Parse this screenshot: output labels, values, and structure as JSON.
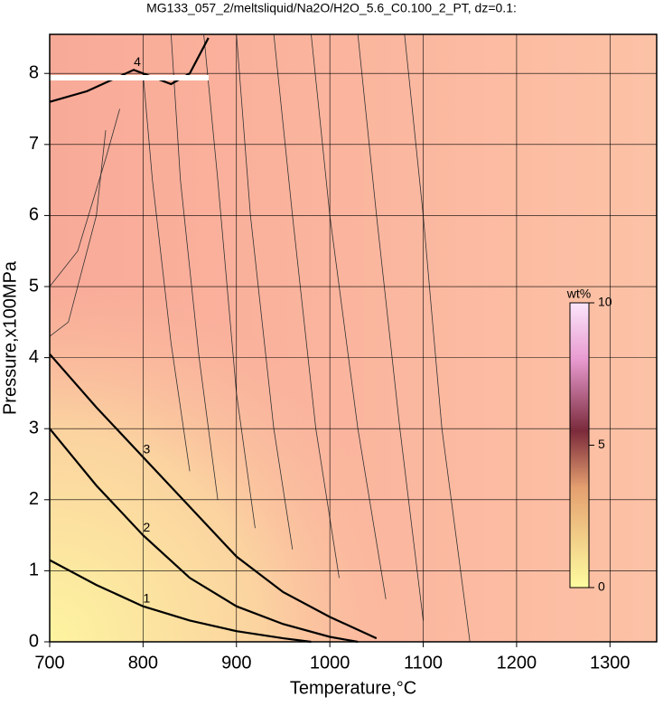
{
  "chart_data": {
    "type": "contour",
    "title": "MG133_057_2/meltsliquid/Na2O/H2O_5.6_C0.100_2_PT, dz=0.1:",
    "x_label": "Temperature,°C",
    "y_label": "Pressure,x100MPa",
    "xlim": [
      700,
      1350
    ],
    "ylim": [
      0,
      8.55
    ],
    "xticks": [
      700,
      800,
      900,
      1000,
      1100,
      1200,
      1300
    ],
    "yticks": [
      0,
      1,
      2,
      3,
      4,
      5,
      6,
      7,
      8
    ],
    "grid": true,
    "contours": [
      {
        "level": 1,
        "x": [
          700,
          750,
          800,
          850,
          900,
          950,
          980
        ],
        "y": [
          1.15,
          0.8,
          0.5,
          0.3,
          0.15,
          0.05,
          0
        ]
      },
      {
        "level": 2,
        "x": [
          700,
          750,
          800,
          850,
          900,
          950,
          1000,
          1030
        ],
        "y": [
          3.0,
          2.2,
          1.5,
          0.9,
          0.5,
          0.25,
          0.07,
          0
        ]
      },
      {
        "level": 3,
        "x": [
          700,
          750,
          800,
          850,
          900,
          950,
          1000,
          1050
        ],
        "y": [
          4.05,
          3.3,
          2.6,
          1.9,
          1.2,
          0.7,
          0.35,
          0.05
        ]
      },
      {
        "level": 4,
        "x": [
          700,
          740,
          790,
          830,
          850,
          870
        ],
        "y": [
          7.6,
          7.75,
          8.05,
          7.85,
          8.0,
          8.5
        ]
      }
    ],
    "thin_contours": [
      {
        "x": [
          1150,
          1120,
          1100,
          1080
        ],
        "y": [
          0,
          3,
          6,
          8.55
        ]
      },
      {
        "x": [
          1100,
          1075,
          1050,
          1030
        ],
        "y": [
          0.3,
          3,
          6,
          8.55
        ]
      },
      {
        "x": [
          1060,
          1030,
          1000,
          980
        ],
        "y": [
          0.6,
          3,
          6,
          8.55
        ]
      },
      {
        "x": [
          1010,
          985,
          960,
          940
        ],
        "y": [
          0.9,
          3,
          6,
          8.55
        ]
      },
      {
        "x": [
          960,
          940,
          915,
          900
        ],
        "y": [
          1.3,
          3,
          6,
          8.55
        ]
      },
      {
        "x": [
          920,
          900,
          880,
          865
        ],
        "y": [
          1.6,
          3.5,
          6.5,
          8.55
        ]
      },
      {
        "x": [
          880,
          860,
          840,
          830
        ],
        "y": [
          2.0,
          4,
          6.5,
          8.55
        ]
      },
      {
        "x": [
          850,
          830,
          810,
          800
        ],
        "y": [
          2.4,
          4.2,
          6.5,
          8.0
        ]
      },
      {
        "x": [
          700,
          720,
          750,
          760
        ],
        "y": [
          4.3,
          4.5,
          6.0,
          7.2
        ]
      },
      {
        "x": [
          700,
          730,
          760,
          775
        ],
        "y": [
          5.0,
          5.5,
          6.8,
          7.5
        ]
      }
    ],
    "colorbar": {
      "label": "wt%",
      "lim": [
        0,
        10
      ],
      "ticks": [
        0,
        5,
        10
      ]
    }
  }
}
